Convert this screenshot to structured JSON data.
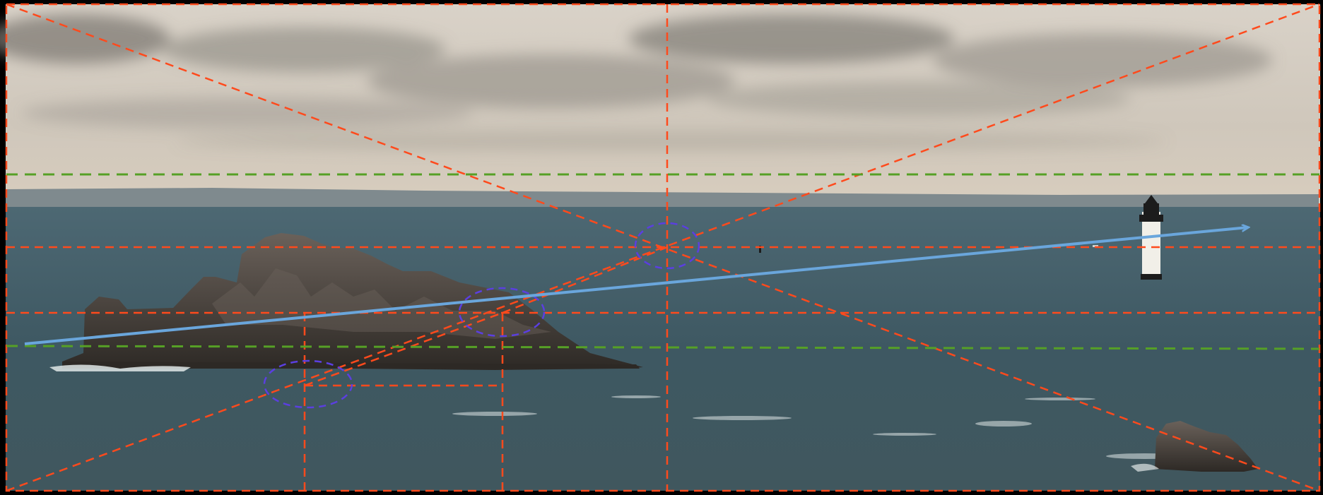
{
  "image": {
    "subject": "seascape-with-rock-island-and-lighthouse",
    "overlay": "composition-guides",
    "colors": {
      "sky_top": "#d9d2c8",
      "sky_mid": "#cfc7bb",
      "sky_horizon": "#d8cdbe",
      "cloud": "#9a958d",
      "cloud_dark": "#7d7a74",
      "distant_land": "#7f8a8e",
      "sea_top": "#4d6873",
      "sea_mid": "#3e5862",
      "sea_bottom": "#40575e",
      "rock_dark": "#2d2925",
      "rock_light": "#6a615a",
      "foam": "#dfe6e6",
      "lighthouse": "#f1efe8",
      "lighthouse_band": "#1c1c1c",
      "guide_red": "#ff4a1c",
      "guide_green": "#56a026",
      "guide_purple": "#5b3fe0",
      "guide_blue": "#6aa6dc",
      "border": "#000000"
    }
  }
}
